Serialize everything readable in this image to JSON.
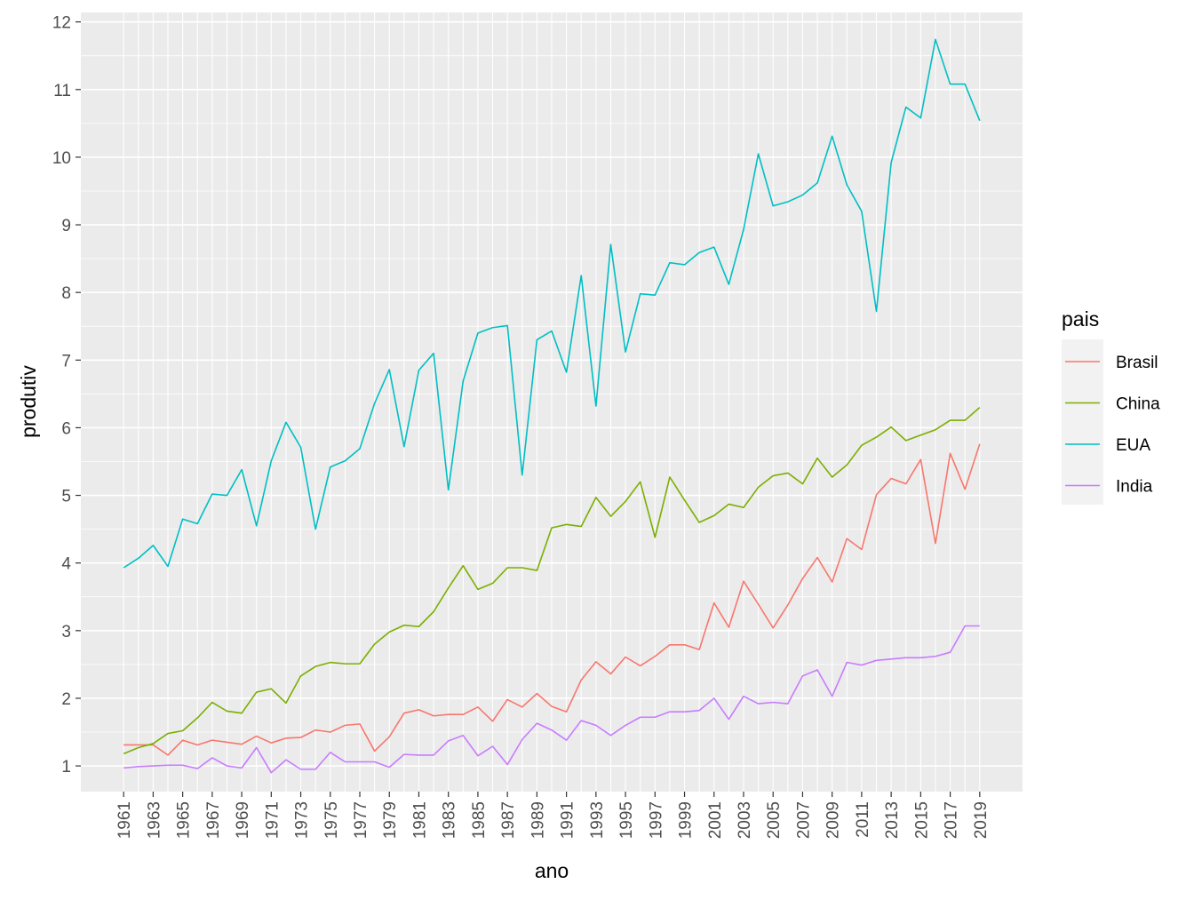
{
  "chart_data": {
    "type": "line",
    "xlabel": "ano",
    "ylabel": "produtiv",
    "legend_title": "pais",
    "legend_position": "right",
    "grid": true,
    "xlim": [
      1958.1,
      2021.9
    ],
    "ylim": [
      0.62,
      12.14
    ],
    "x_ticks": [
      1961,
      1963,
      1965,
      1967,
      1969,
      1971,
      1973,
      1975,
      1977,
      1979,
      1981,
      1983,
      1985,
      1987,
      1989,
      1991,
      1993,
      1995,
      1997,
      1999,
      2001,
      2003,
      2005,
      2007,
      2009,
      2011,
      2013,
      2015,
      2017,
      2019
    ],
    "y_ticks": [
      1,
      2,
      3,
      4,
      5,
      6,
      7,
      8,
      9,
      10,
      11,
      12
    ],
    "x": [
      1961,
      1962,
      1963,
      1964,
      1965,
      1966,
      1967,
      1968,
      1969,
      1970,
      1971,
      1972,
      1973,
      1974,
      1975,
      1976,
      1977,
      1978,
      1979,
      1980,
      1981,
      1982,
      1983,
      1984,
      1985,
      1986,
      1987,
      1988,
      1989,
      1990,
      1991,
      1992,
      1993,
      1994,
      1995,
      1996,
      1997,
      1998,
      1999,
      2000,
      2001,
      2002,
      2003,
      2004,
      2005,
      2006,
      2007,
      2008,
      2009,
      2010,
      2011,
      2012,
      2013,
      2014,
      2015,
      2016,
      2017,
      2018,
      2019
    ],
    "series": [
      {
        "name": "Brasil",
        "color": "#F8766D",
        "values": [
          1.31,
          1.31,
          1.31,
          1.16,
          1.38,
          1.31,
          1.38,
          1.35,
          1.32,
          1.44,
          1.34,
          1.41,
          1.42,
          1.53,
          1.5,
          1.6,
          1.62,
          1.22,
          1.43,
          1.78,
          1.83,
          1.74,
          1.76,
          1.76,
          1.87,
          1.66,
          1.98,
          1.87,
          2.07,
          1.88,
          1.8,
          2.27,
          2.54,
          2.36,
          2.61,
          2.48,
          2.62,
          2.79,
          2.79,
          2.72,
          3.41,
          3.05,
          3.73,
          3.39,
          3.04,
          3.38,
          3.77,
          4.08,
          3.72,
          4.36,
          4.2,
          5.01,
          5.25,
          5.17,
          5.53,
          4.29,
          5.62,
          5.09,
          5.76
        ]
      },
      {
        "name": "China",
        "color": "#7CAE00",
        "values": [
          1.18,
          1.27,
          1.33,
          1.48,
          1.52,
          1.71,
          1.94,
          1.81,
          1.78,
          2.09,
          2.14,
          1.93,
          2.33,
          2.47,
          2.53,
          2.51,
          2.51,
          2.8,
          2.98,
          3.08,
          3.06,
          3.28,
          3.63,
          3.96,
          3.61,
          3.7,
          3.93,
          3.93,
          3.89,
          4.52,
          4.57,
          4.54,
          4.97,
          4.69,
          4.91,
          5.2,
          4.38,
          5.27,
          4.93,
          4.6,
          4.7,
          4.87,
          4.82,
          5.12,
          5.29,
          5.33,
          5.17,
          5.55,
          5.27,
          5.45,
          5.74,
          5.86,
          6.01,
          5.81,
          5.89,
          5.97,
          6.11,
          6.11,
          6.3
        ]
      },
      {
        "name": "EUA",
        "color": "#00BFC4",
        "values": [
          3.93,
          4.07,
          4.26,
          3.95,
          4.65,
          4.58,
          5.02,
          5.0,
          5.38,
          4.55,
          5.51,
          6.08,
          5.71,
          4.5,
          5.42,
          5.51,
          5.69,
          6.36,
          6.86,
          5.72,
          6.85,
          7.1,
          5.08,
          6.69,
          7.4,
          7.48,
          7.51,
          5.3,
          7.3,
          7.43,
          6.82,
          8.25,
          6.32,
          8.71,
          7.12,
          7.98,
          7.96,
          8.44,
          8.41,
          8.59,
          8.67,
          8.12,
          8.93,
          10.05,
          9.28,
          9.34,
          9.44,
          9.62,
          10.31,
          9.59,
          9.2,
          7.72,
          9.92,
          10.74,
          10.58,
          11.74,
          11.08,
          11.08,
          10.54
        ]
      },
      {
        "name": "India",
        "color": "#C77CFF",
        "values": [
          0.97,
          0.99,
          1.0,
          1.01,
          1.01,
          0.96,
          1.12,
          1.0,
          0.97,
          1.27,
          0.9,
          1.09,
          0.95,
          0.95,
          1.2,
          1.06,
          1.06,
          1.06,
          0.98,
          1.17,
          1.16,
          1.16,
          1.37,
          1.45,
          1.15,
          1.29,
          1.02,
          1.39,
          1.63,
          1.53,
          1.38,
          1.67,
          1.6,
          1.45,
          1.6,
          1.72,
          1.72,
          1.8,
          1.8,
          1.82,
          2.0,
          1.69,
          2.03,
          1.92,
          1.94,
          1.92,
          2.33,
          2.42,
          2.03,
          2.53,
          2.49,
          2.56,
          2.58,
          2.6,
          2.6,
          2.62,
          2.68,
          3.07,
          3.07
        ]
      }
    ]
  }
}
